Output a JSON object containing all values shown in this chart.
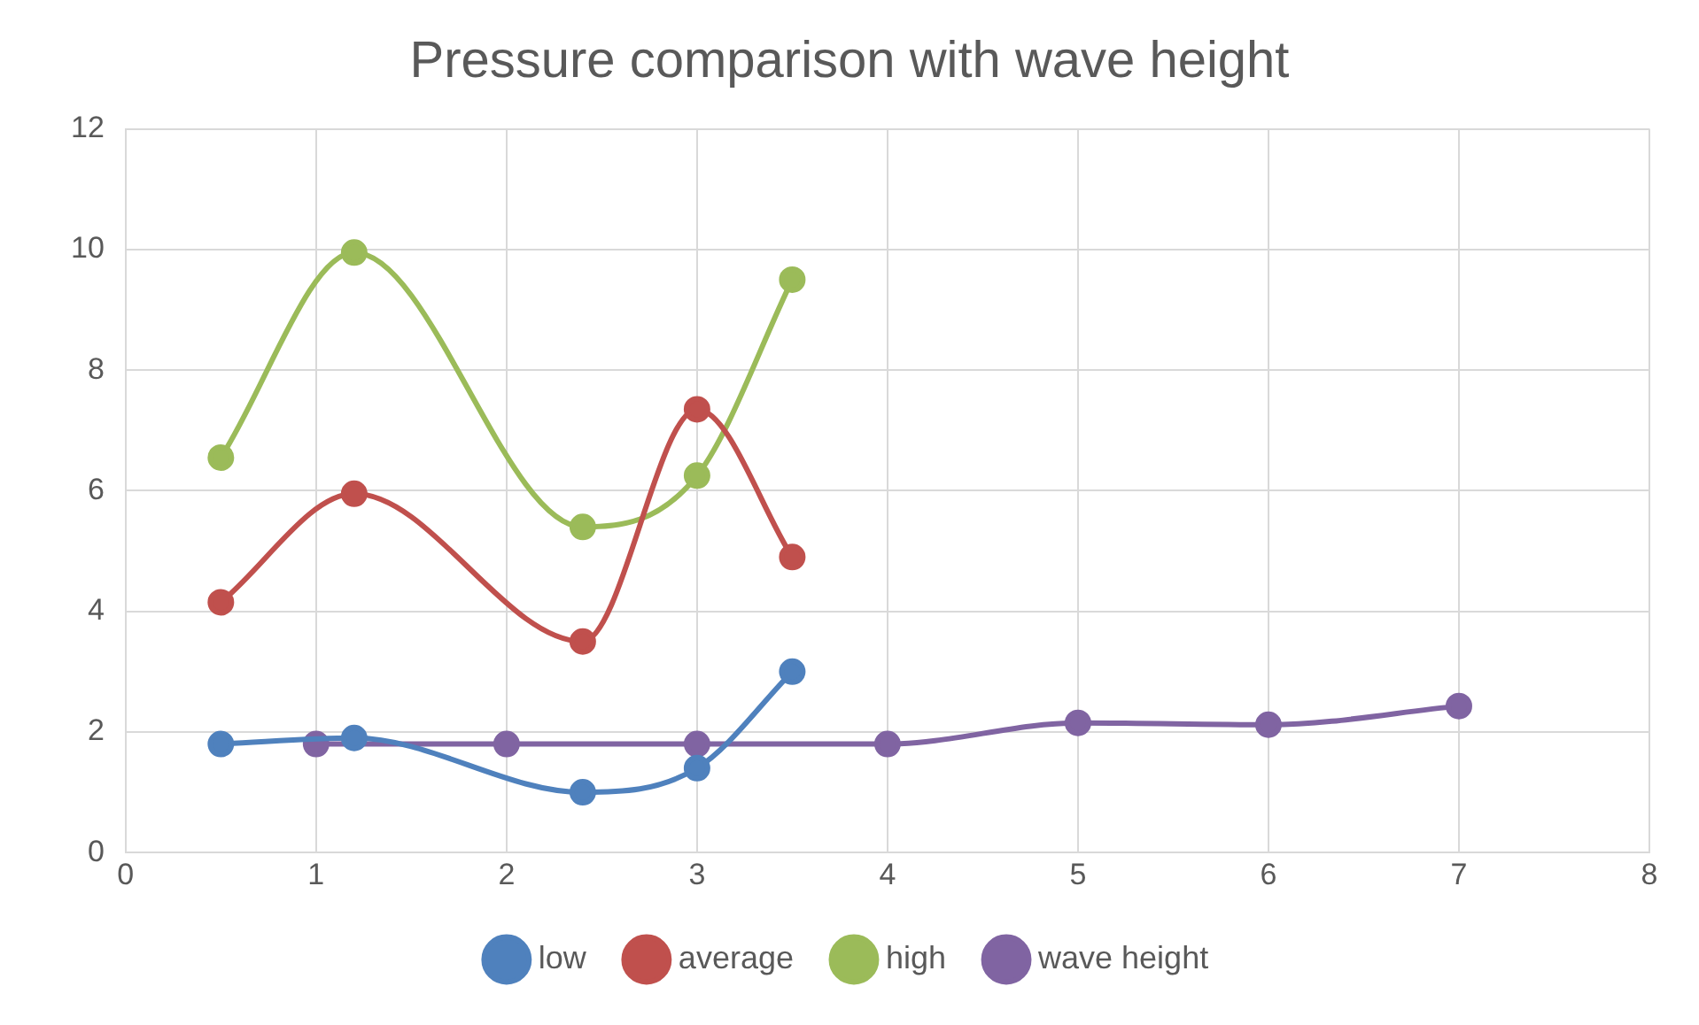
{
  "chart_data": {
    "type": "line",
    "title": "Pressure comparison with wave height",
    "xlim": [
      0,
      8
    ],
    "xticks": [
      0,
      1,
      2,
      3,
      4,
      5,
      6,
      7,
      8
    ],
    "ylim": [
      0,
      12
    ],
    "yticks": [
      0,
      2,
      4,
      6,
      8,
      10,
      12
    ],
    "grid": true,
    "legend": "bottom",
    "marker": "circle",
    "line_style": "solid",
    "series": [
      {
        "name": "low",
        "color": "#4f81bd",
        "x": [
          0.5,
          1.2,
          2.4,
          3,
          3.5
        ],
        "values": [
          1.8,
          1.9,
          1.0,
          1.4,
          3.0
        ]
      },
      {
        "name": "average",
        "color": "#c0504d",
        "x": [
          0.5,
          1.2,
          2.4,
          3,
          3.5
        ],
        "values": [
          4.15,
          5.95,
          3.5,
          7.35,
          4.9
        ]
      },
      {
        "name": "high",
        "color": "#9bbb59",
        "x": [
          0.5,
          1.2,
          2.4,
          3,
          3.5
        ],
        "values": [
          6.55,
          9.95,
          5.4,
          6.25,
          9.5
        ]
      },
      {
        "name": "wave height",
        "color": "#8064a2",
        "x": [
          1,
          2,
          3,
          4,
          5,
          6,
          7
        ],
        "values": [
          1.8,
          1.8,
          1.8,
          1.8,
          2.15,
          2.12,
          2.43
        ]
      }
    ]
  }
}
